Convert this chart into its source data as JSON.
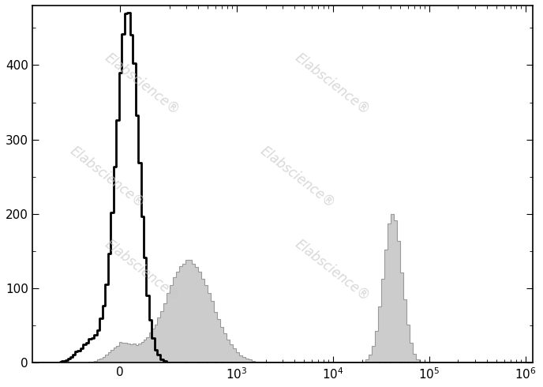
{
  "ylim": [
    0,
    480
  ],
  "yticks": [
    0,
    100,
    200,
    300,
    400
  ],
  "background_color": "#ffffff",
  "watermark_text": "Elabscience",
  "watermark_color": "#c8c8c8",
  "black_hist_color": "#000000",
  "gray_fill_color": "#cccccc",
  "gray_edge_color": "#999999",
  "black_linewidth": 2.0,
  "gray_linewidth": 0.8,
  "linthresh": 150,
  "linscale": 0.35,
  "xlim_left": -500,
  "xlim_right": 1200000
}
